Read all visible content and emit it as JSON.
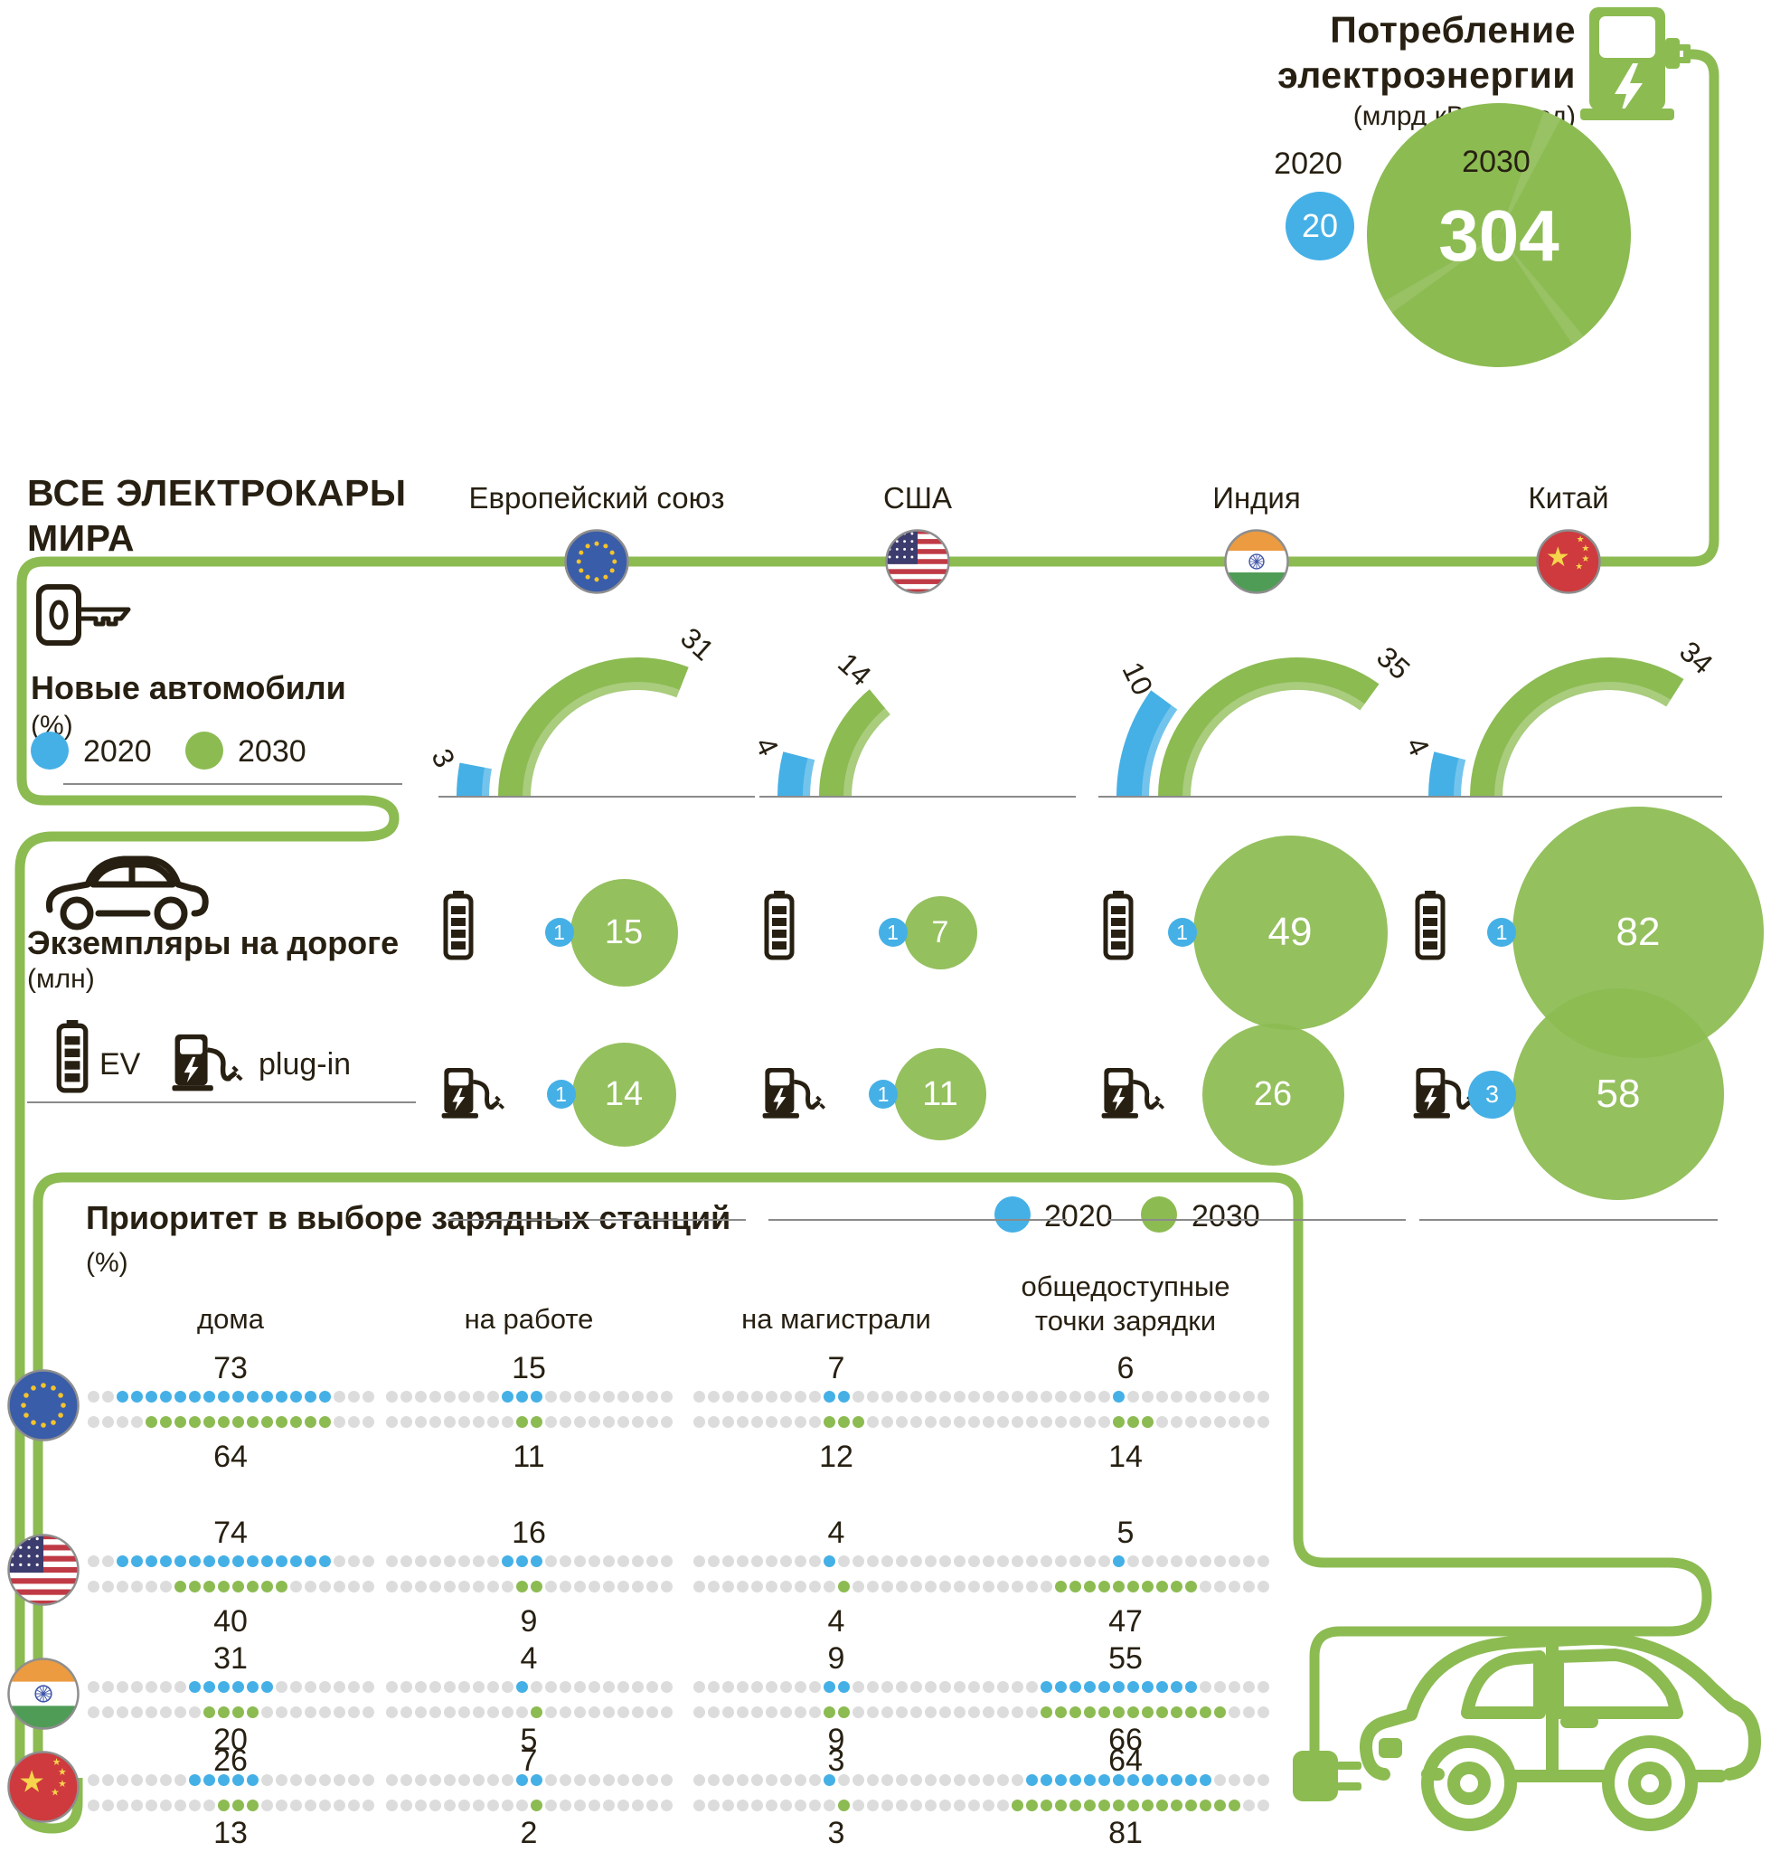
{
  "colors": {
    "green": "#8cbb52",
    "green_dark_overlap": "#4e7a28",
    "blue": "#45b0e6",
    "gray_dot": "#dcdcdc",
    "text": "#272012",
    "thin_line": "#8a8a8a"
  },
  "header": {
    "title_line1": "ВСЕ ЭЛЕКТРОКАРЫ",
    "title_line2": "МИРА"
  },
  "consumption": {
    "title_line1": "Потребление",
    "title_line2": "электроэнергии",
    "unit": "(млрд кВт/ч в год)",
    "label_2020": "2020",
    "label_2030": "2030",
    "value_2020": "20",
    "value_2030": "304",
    "icon": "charging-station-icon"
  },
  "countries": [
    {
      "id": "eu",
      "name": "Европейский союз"
    },
    {
      "id": "usa",
      "name": "США"
    },
    {
      "id": "india",
      "name": "Индия"
    },
    {
      "id": "china",
      "name": "Китай"
    }
  ],
  "new_cars": {
    "icon": "car-key-icon",
    "title": "Новые автомобили",
    "unit": "(%)",
    "legend_2020": "2020",
    "legend_2030": "2030",
    "gauge_scale_semicircle_percent": 50,
    "values": {
      "eu": {
        "y2020": 3,
        "y2030": 31
      },
      "usa": {
        "y2020": 4,
        "y2030": 14
      },
      "india": {
        "y2020": 10,
        "y2030": 35
      },
      "china": {
        "y2020": 4,
        "y2030": 34
      }
    }
  },
  "on_road": {
    "icon": "car-icon",
    "title": "Экземпляры на дороге",
    "unit": "(млн)",
    "legend_ev": "EV",
    "legend_plugin": "plug-in",
    "ev": {
      "eu": {
        "y2020": 1,
        "y2030": 15
      },
      "usa": {
        "y2020": 1,
        "y2030": 7
      },
      "india": {
        "y2020": 1,
        "y2030": 49
      },
      "china": {
        "y2020": 1,
        "y2030": 82
      }
    },
    "plugin": {
      "eu": {
        "y2020": 1,
        "y2030": 14
      },
      "usa": {
        "y2020": 1,
        "y2030": 11
      },
      "india": {
        "y2020": null,
        "y2030": 26
      },
      "china": {
        "y2020": 3,
        "y2030": 58
      }
    }
  },
  "charging": {
    "title": "Приоритет в выборе зарядных станций",
    "unit": "(%)",
    "legend_2020": "2020",
    "legend_2030": "2030",
    "columns": [
      "дома",
      "на работе",
      "на магистрали",
      "общедоступные точки зарядки"
    ],
    "rows": [
      {
        "country": "eu",
        "values": [
          [
            73,
            64
          ],
          [
            15,
            11
          ],
          [
            7,
            12
          ],
          [
            6,
            14
          ]
        ]
      },
      {
        "country": "usa",
        "values": [
          [
            74,
            40
          ],
          [
            16,
            9
          ],
          [
            4,
            4
          ],
          [
            5,
            47
          ]
        ]
      },
      {
        "country": "india",
        "values": [
          [
            31,
            20
          ],
          [
            4,
            5
          ],
          [
            9,
            9
          ],
          [
            55,
            66
          ]
        ]
      },
      {
        "country": "china",
        "values": [
          [
            26,
            13
          ],
          [
            7,
            2
          ],
          [
            3,
            3
          ],
          [
            64,
            81
          ]
        ]
      }
    ]
  },
  "chart_data": [
    {
      "type": "bubble",
      "title": "Потребление электроэнергии (млрд кВт/ч в год)",
      "categories": [
        "2020",
        "2030"
      ],
      "values": [
        20,
        304
      ],
      "note": "area-proportional circles, blue=2020, green=2030"
    },
    {
      "type": "gauge",
      "title": "Новые автомобили (%)",
      "categories": [
        "Европейский союз",
        "США",
        "Индия",
        "Китай"
      ],
      "series": [
        {
          "name": "2020",
          "values": [
            3,
            4,
            10,
            4
          ]
        },
        {
          "name": "2030",
          "values": [
            31,
            14,
            35,
            34
          ]
        }
      ],
      "layout": "semicircle gauges, 180deg = 50%"
    },
    {
      "type": "bubble",
      "title": "Экземпляры на дороге (млн)",
      "categories": [
        "Европейский союз",
        "США",
        "Индия",
        "Китай"
      ],
      "series": [
        {
          "name": "EV 2020",
          "values": [
            1,
            1,
            1,
            1
          ]
        },
        {
          "name": "EV 2030",
          "values": [
            15,
            7,
            49,
            82
          ]
        },
        {
          "name": "plug-in 2020",
          "values": [
            1,
            1,
            null,
            3
          ]
        },
        {
          "name": "plug-in 2030",
          "values": [
            14,
            11,
            26,
            58
          ]
        }
      ]
    },
    {
      "type": "heatmap",
      "title": "Приоритет в выборе зарядных станций (%)",
      "x": [
        "дома",
        "на работе",
        "на магистрали",
        "общедоступные точки зарядки"
      ],
      "y": [
        "Европейский союз",
        "США",
        "Индия",
        "Китай"
      ],
      "series": [
        {
          "name": "2020",
          "values": [
            [
              73,
              15,
              7,
              6
            ],
            [
              74,
              16,
              4,
              5
            ],
            [
              31,
              4,
              9,
              55
            ],
            [
              26,
              7,
              3,
              64
            ]
          ]
        },
        {
          "name": "2030",
          "values": [
            [
              64,
              11,
              12,
              14
            ],
            [
              40,
              9,
              4,
              47
            ],
            [
              20,
              5,
              9,
              66
            ],
            [
              13,
              2,
              3,
              81
            ]
          ]
        }
      ],
      "note": "dot-matrix rows of 20 dots, 1 dot = 5%"
    }
  ]
}
